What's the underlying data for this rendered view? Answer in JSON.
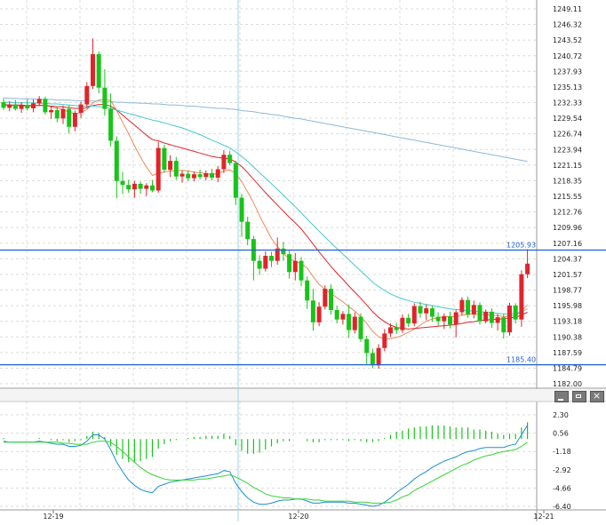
{
  "chart_data": {
    "type": "candlestick",
    "main_axis": {
      "ticks": [
        "1249.11",
        "1246.32",
        "1243.52",
        "1240.72",
        "1237.93",
        "1235.13",
        "1232.33",
        "1229.54",
        "1226.74",
        "1223.94",
        "1221.15",
        "1218.35",
        "1215.55",
        "1212.76",
        "1209.96",
        "1207.16",
        "1204.37",
        "1201.57",
        "1198.77",
        "1195.98",
        "1193.18",
        "1190.38",
        "1187.59",
        "1184.79",
        "1182.00"
      ],
      "ylim": [
        1182.0,
        1249.11
      ]
    },
    "horizontal_levels": [
      {
        "label": "1205.93",
        "value": 1205.93,
        "color": "#1f5fd6"
      },
      {
        "label": "1185.40",
        "value": 1185.4,
        "color": "#1f5fd6"
      }
    ],
    "x_labels": [
      "12-19",
      "12-20",
      "12-21"
    ],
    "ohlc": [
      [
        1232.4,
        1233.1,
        1231.0,
        1231.4
      ],
      [
        1231.4,
        1232.6,
        1230.8,
        1232.0
      ],
      [
        1232.0,
        1232.8,
        1230.9,
        1231.2
      ],
      [
        1231.2,
        1232.4,
        1230.5,
        1231.9
      ],
      [
        1231.9,
        1233.0,
        1230.9,
        1231.3
      ],
      [
        1231.3,
        1232.9,
        1230.6,
        1232.2
      ],
      [
        1232.2,
        1233.5,
        1231.7,
        1233.0
      ],
      [
        1233.0,
        1233.4,
        1230.2,
        1230.6
      ],
      [
        1230.6,
        1231.6,
        1229.4,
        1231.0
      ],
      [
        1231.0,
        1231.6,
        1228.8,
        1229.5
      ],
      [
        1229.5,
        1231.8,
        1228.5,
        1231.2
      ],
      [
        1231.2,
        1231.9,
        1226.8,
        1228.0
      ],
      [
        1228.0,
        1230.9,
        1227.2,
        1230.5
      ],
      [
        1230.5,
        1232.5,
        1229.6,
        1232.0
      ],
      [
        1232.0,
        1236.0,
        1231.5,
        1235.3
      ],
      [
        1235.3,
        1243.8,
        1234.8,
        1241.0
      ],
      [
        1241.0,
        1241.5,
        1234.0,
        1235.0
      ],
      [
        1235.0,
        1238.3,
        1230.0,
        1231.2
      ],
      [
        1231.2,
        1234.0,
        1224.5,
        1225.5
      ],
      [
        1225.5,
        1226.3,
        1215.2,
        1218.3
      ],
      [
        1218.3,
        1219.9,
        1216.0,
        1217.6
      ],
      [
        1217.6,
        1218.5,
        1216.2,
        1216.8
      ],
      [
        1216.8,
        1218.3,
        1215.3,
        1217.8
      ],
      [
        1217.8,
        1218.2,
        1216.0,
        1216.9
      ],
      [
        1216.9,
        1217.9,
        1215.6,
        1217.5
      ],
      [
        1217.5,
        1218.5,
        1216.3,
        1216.6
      ],
      [
        1216.6,
        1225.3,
        1216.2,
        1224.2
      ],
      [
        1224.2,
        1224.8,
        1219.8,
        1220.3
      ],
      [
        1220.3,
        1222.9,
        1219.0,
        1221.9
      ],
      [
        1221.9,
        1222.6,
        1218.5,
        1219.1
      ],
      [
        1219.1,
        1220.2,
        1218.0,
        1219.6
      ],
      [
        1219.6,
        1220.2,
        1218.3,
        1218.8
      ],
      [
        1218.8,
        1220.0,
        1218.2,
        1219.5
      ],
      [
        1219.5,
        1220.3,
        1218.6,
        1219.0
      ],
      [
        1219.0,
        1220.2,
        1218.4,
        1219.7
      ],
      [
        1219.7,
        1220.5,
        1218.4,
        1218.9
      ],
      [
        1218.9,
        1221.0,
        1218.1,
        1220.4
      ],
      [
        1220.4,
        1223.8,
        1219.7,
        1223.0
      ],
      [
        1223.0,
        1223.7,
        1221.1,
        1221.5
      ],
      [
        1221.5,
        1221.9,
        1214.0,
        1215.3
      ],
      [
        1215.3,
        1216.0,
        1208.3,
        1211.0
      ],
      [
        1211.0,
        1211.9,
        1206.8,
        1207.9
      ],
      [
        1207.9,
        1208.5,
        1200.5,
        1204.0
      ],
      [
        1204.0,
        1205.0,
        1201.5,
        1202.6
      ],
      [
        1202.6,
        1205.7,
        1202.1,
        1204.9
      ],
      [
        1204.9,
        1205.6,
        1202.9,
        1204.0
      ],
      [
        1204.0,
        1208.2,
        1203.3,
        1206.2
      ],
      [
        1206.2,
        1207.4,
        1204.0,
        1205.2
      ],
      [
        1205.2,
        1205.9,
        1200.8,
        1202.0
      ],
      [
        1202.0,
        1205.4,
        1200.5,
        1204.0
      ],
      [
        1204.0,
        1204.7,
        1199.5,
        1200.5
      ],
      [
        1200.5,
        1201.2,
        1195.4,
        1196.9
      ],
      [
        1196.9,
        1199.0,
        1191.5,
        1193.0
      ],
      [
        1193.0,
        1196.6,
        1192.3,
        1195.8
      ],
      [
        1195.8,
        1199.6,
        1195.3,
        1199.0
      ],
      [
        1199.0,
        1199.8,
        1194.4,
        1195.2
      ],
      [
        1195.2,
        1195.9,
        1192.8,
        1193.5
      ],
      [
        1193.5,
        1195.0,
        1192.6,
        1194.5
      ],
      [
        1194.5,
        1196.2,
        1190.2,
        1191.6
      ],
      [
        1191.6,
        1194.8,
        1191.0,
        1194.0
      ],
      [
        1194.0,
        1194.6,
        1189.5,
        1190.0
      ],
      [
        1190.0,
        1190.6,
        1185.4,
        1187.5
      ],
      [
        1187.5,
        1188.3,
        1184.8,
        1185.3
      ],
      [
        1185.3,
        1189.1,
        1184.7,
        1188.4
      ],
      [
        1188.4,
        1191.8,
        1187.8,
        1191.0
      ],
      [
        1191.0,
        1192.8,
        1190.4,
        1192.1
      ],
      [
        1192.1,
        1192.9,
        1190.9,
        1191.6
      ],
      [
        1191.6,
        1194.4,
        1191.1,
        1193.8
      ],
      [
        1193.8,
        1194.5,
        1192.2,
        1192.8
      ],
      [
        1192.8,
        1196.4,
        1192.3,
        1195.9
      ],
      [
        1195.9,
        1196.7,
        1193.8,
        1194.6
      ],
      [
        1194.6,
        1196.2,
        1193.4,
        1195.5
      ],
      [
        1195.5,
        1196.0,
        1193.1,
        1194.0
      ],
      [
        1194.0,
        1194.8,
        1192.4,
        1193.2
      ],
      [
        1193.2,
        1194.6,
        1191.8,
        1194.1
      ],
      [
        1194.1,
        1194.9,
        1191.9,
        1192.6
      ],
      [
        1192.6,
        1195.3,
        1190.3,
        1194.8
      ],
      [
        1194.8,
        1197.5,
        1194.2,
        1197.0
      ],
      [
        1197.0,
        1197.6,
        1193.8,
        1194.4
      ],
      [
        1194.4,
        1196.9,
        1193.7,
        1196.1
      ],
      [
        1196.1,
        1196.6,
        1192.6,
        1193.2
      ],
      [
        1193.2,
        1195.3,
        1192.8,
        1194.9
      ],
      [
        1194.9,
        1195.5,
        1192.0,
        1192.9
      ],
      [
        1192.9,
        1194.5,
        1191.5,
        1193.9
      ],
      [
        1193.9,
        1194.5,
        1190.1,
        1191.2
      ],
      [
        1191.2,
        1196.5,
        1190.6,
        1196.0
      ],
      [
        1196.0,
        1196.4,
        1192.8,
        1193.5
      ],
      [
        1193.5,
        1202.3,
        1192.2,
        1201.6
      ],
      [
        1201.6,
        1206.1,
        1200.9,
        1203.5
      ]
    ],
    "moving_averages": [
      {
        "color": "#f08a57",
        "values": [
          1231.8,
          1231.8,
          1231.8,
          1231.7,
          1231.7,
          1231.7,
          1231.9,
          1231.8,
          1231.6,
          1231.3,
          1231.1,
          1230.6,
          1230.4,
          1230.5,
          1231.1,
          1232.3,
          1232.8,
          1233.0,
          1232.7,
          1230.9,
          1228.8,
          1226.8,
          1224.6,
          1222.6,
          1220.8,
          1219.3,
          1219.7,
          1219.9,
          1220.1,
          1220.1,
          1220.2,
          1220.1,
          1219.9,
          1219.8,
          1219.6,
          1219.5,
          1219.6,
          1220.1,
          1220.3,
          1219.6,
          1218.2,
          1216.3,
          1214.4,
          1212.1,
          1210.0,
          1208.0,
          1206.6,
          1205.3,
          1204.4,
          1203.9,
          1203.5,
          1202.7,
          1201.2,
          1199.8,
          1198.9,
          1198.2,
          1197.4,
          1196.7,
          1195.8,
          1195.0,
          1194.0,
          1192.8,
          1191.4,
          1190.4,
          1190.0,
          1190.1,
          1190.3,
          1190.7,
          1191.2,
          1191.8,
          1192.5,
          1193.2,
          1193.6,
          1193.8,
          1194.0,
          1194.0,
          1194.0,
          1194.3,
          1194.4,
          1194.5,
          1194.4,
          1194.4,
          1194.3,
          1194.2,
          1194.0,
          1194.1,
          1194.2,
          1195.0,
          1196.1
        ]
      },
      {
        "color": "#e0242a",
        "values": [
          1232.0,
          1231.9,
          1231.9,
          1231.9,
          1231.8,
          1231.8,
          1231.8,
          1231.8,
          1231.7,
          1231.6,
          1231.6,
          1231.4,
          1231.3,
          1231.3,
          1231.4,
          1231.8,
          1232.0,
          1232.0,
          1231.7,
          1231.0,
          1230.1,
          1229.2,
          1228.3,
          1227.4,
          1226.5,
          1225.7,
          1225.5,
          1225.1,
          1224.8,
          1224.5,
          1224.2,
          1223.9,
          1223.6,
          1223.3,
          1223.0,
          1222.7,
          1222.5,
          1222.4,
          1222.3,
          1221.7,
          1220.9,
          1219.8,
          1218.6,
          1217.4,
          1216.2,
          1215.1,
          1214.0,
          1212.9,
          1211.8,
          1210.8,
          1209.7,
          1208.4,
          1207.0,
          1205.6,
          1204.3,
          1203.0,
          1201.8,
          1200.7,
          1199.5,
          1198.4,
          1197.3,
          1196.1,
          1194.9,
          1193.9,
          1193.1,
          1192.5,
          1192.1,
          1191.9,
          1191.8,
          1191.9,
          1192.0,
          1192.1,
          1192.2,
          1192.3,
          1192.4,
          1192.5,
          1192.6,
          1192.8,
          1193.0,
          1193.1,
          1193.3,
          1193.4,
          1193.5,
          1193.6,
          1193.6,
          1193.8,
          1193.9,
          1194.3,
          1194.8
        ]
      },
      {
        "color": "#45c8d2",
        "values": [
          1232.4,
          1232.4,
          1232.3,
          1232.3,
          1232.3,
          1232.3,
          1232.2,
          1232.2,
          1232.1,
          1232.1,
          1232.0,
          1231.9,
          1231.8,
          1231.7,
          1231.7,
          1231.7,
          1231.6,
          1231.5,
          1231.3,
          1231.0,
          1230.7,
          1230.4,
          1230.1,
          1229.8,
          1229.5,
          1229.2,
          1229.0,
          1228.7,
          1228.4,
          1228.1,
          1227.8,
          1227.4,
          1227.0,
          1226.6,
          1226.1,
          1225.6,
          1225.2,
          1224.7,
          1224.2,
          1223.5,
          1222.7,
          1221.8,
          1220.8,
          1219.8,
          1218.8,
          1217.8,
          1216.8,
          1215.8,
          1214.7,
          1213.7,
          1212.6,
          1211.5,
          1210.4,
          1209.3,
          1208.3,
          1207.2,
          1206.2,
          1205.2,
          1204.2,
          1203.2,
          1202.2,
          1201.2,
          1200.2,
          1199.4,
          1198.7,
          1198.1,
          1197.6,
          1197.2,
          1196.9,
          1196.6,
          1196.4,
          1196.2,
          1196.0,
          1195.8,
          1195.6,
          1195.4,
          1195.3,
          1195.2,
          1195.1,
          1195.0,
          1194.9,
          1194.8,
          1194.7,
          1194.6,
          1194.5,
          1194.5,
          1194.5,
          1194.9,
          1195.4
        ]
      },
      {
        "color": "#8fb8d8",
        "values": [
          1233.2,
          1233.1,
          1233.1,
          1233.0,
          1233.0,
          1233.0,
          1232.9,
          1232.9,
          1232.9,
          1232.8,
          1232.8,
          1232.8,
          1232.7,
          1232.7,
          1232.6,
          1232.6,
          1232.6,
          1232.5,
          1232.5,
          1232.4,
          1232.4,
          1232.3,
          1232.3,
          1232.2,
          1232.2,
          1232.1,
          1232.1,
          1232.0,
          1231.9,
          1231.9,
          1231.8,
          1231.7,
          1231.7,
          1231.6,
          1231.5,
          1231.4,
          1231.3,
          1231.3,
          1231.2,
          1231.1,
          1230.9,
          1230.8,
          1230.7,
          1230.5,
          1230.4,
          1230.2,
          1230.1,
          1229.9,
          1229.7,
          1229.5,
          1229.4,
          1229.2,
          1229.0,
          1228.8,
          1228.6,
          1228.4,
          1228.2,
          1228.0,
          1227.8,
          1227.6,
          1227.4,
          1227.2,
          1227.0,
          1226.8,
          1226.6,
          1226.4,
          1226.2,
          1226.0,
          1225.8,
          1225.6,
          1225.4,
          1225.2,
          1225.0,
          1224.8,
          1224.6,
          1224.4,
          1224.2,
          1224.0,
          1223.8,
          1223.6,
          1223.4,
          1223.2,
          1223.0,
          1222.8,
          1222.6,
          1222.4,
          1222.2,
          1222.0,
          1221.8
        ]
      }
    ],
    "macd_axis": {
      "ticks": [
        "2.30",
        "0.56",
        "-1.18",
        "-2.92",
        "-4.66",
        "-6.40"
      ],
      "ylim": [
        -6.4,
        2.3
      ]
    },
    "macd": {
      "dif": [
        -0.2,
        -0.3,
        -0.3,
        -0.3,
        -0.3,
        -0.3,
        -0.2,
        -0.3,
        -0.4,
        -0.5,
        -0.5,
        -0.7,
        -0.7,
        -0.6,
        -0.2,
        0.4,
        0.4,
        0.0,
        -1.0,
        -2.2,
        -3.1,
        -3.9,
        -4.4,
        -4.8,
        -5.0,
        -5.1,
        -4.5,
        -4.3,
        -4.1,
        -4.0,
        -3.9,
        -3.8,
        -3.7,
        -3.6,
        -3.5,
        -3.4,
        -3.3,
        -3.0,
        -3.1,
        -4.2,
        -5.0,
        -5.6,
        -6.0,
        -6.2,
        -6.2,
        -6.1,
        -5.9,
        -5.8,
        -5.8,
        -5.7,
        -5.7,
        -5.9,
        -6.1,
        -6.1,
        -6.0,
        -6.0,
        -6.0,
        -6.0,
        -6.1,
        -6.1,
        -6.2,
        -6.3,
        -6.4,
        -6.3,
        -6.0,
        -5.6,
        -5.1,
        -4.7,
        -4.3,
        -3.8,
        -3.4,
        -3.1,
        -2.7,
        -2.4,
        -2.1,
        -1.9,
        -1.7,
        -1.4,
        -1.2,
        -1.1,
        -0.9,
        -0.8,
        -0.8,
        -0.8,
        -0.8,
        -0.6,
        -0.5,
        0.4,
        1.3
      ],
      "dea": [
        -0.3,
        -0.3,
        -0.3,
        -0.3,
        -0.3,
        -0.3,
        -0.3,
        -0.3,
        -0.3,
        -0.3,
        -0.4,
        -0.4,
        -0.5,
        -0.5,
        -0.5,
        -0.3,
        -0.2,
        -0.2,
        -0.3,
        -0.7,
        -1.2,
        -1.7,
        -2.2,
        -2.7,
        -3.1,
        -3.4,
        -3.6,
        -3.8,
        -3.9,
        -3.9,
        -3.9,
        -3.9,
        -3.9,
        -3.8,
        -3.8,
        -3.7,
        -3.6,
        -3.5,
        -3.4,
        -3.6,
        -3.9,
        -4.2,
        -4.6,
        -4.9,
        -5.2,
        -5.4,
        -5.5,
        -5.6,
        -5.6,
        -5.7,
        -5.7,
        -5.7,
        -5.8,
        -5.8,
        -5.9,
        -5.9,
        -5.9,
        -5.9,
        -5.9,
        -6.0,
        -6.0,
        -6.0,
        -6.1,
        -6.1,
        -6.1,
        -6.0,
        -5.8,
        -5.5,
        -5.3,
        -4.9,
        -4.6,
        -4.3,
        -4.0,
        -3.7,
        -3.4,
        -3.1,
        -2.8,
        -2.5,
        -2.3,
        -2.0,
        -1.8,
        -1.6,
        -1.5,
        -1.3,
        -1.2,
        -1.1,
        -1.0,
        -0.7,
        -0.3
      ],
      "hist": [
        0.1,
        0.0,
        0.0,
        0.0,
        0.0,
        0.0,
        0.1,
        0.0,
        -0.1,
        -0.2,
        -0.1,
        -0.3,
        -0.2,
        -0.1,
        0.3,
        0.7,
        0.6,
        0.2,
        -0.7,
        -1.5,
        -1.9,
        -2.2,
        -2.2,
        -2.1,
        -1.9,
        -1.7,
        -0.9,
        -0.5,
        -0.2,
        -0.1,
        0.0,
        0.1,
        0.2,
        0.2,
        0.3,
        0.3,
        0.3,
        0.5,
        0.3,
        -0.6,
        -1.1,
        -1.4,
        -1.4,
        -1.3,
        -1.0,
        -0.7,
        -0.4,
        -0.2,
        -0.2,
        0.0,
        0.0,
        -0.2,
        -0.3,
        -0.3,
        -0.1,
        -0.1,
        -0.1,
        -0.1,
        -0.2,
        -0.1,
        -0.2,
        -0.3,
        -0.3,
        -0.2,
        0.1,
        0.4,
        0.7,
        0.8,
        1.0,
        1.1,
        1.2,
        1.2,
        1.3,
        1.3,
        1.3,
        1.2,
        1.1,
        1.1,
        1.1,
        0.9,
        0.9,
        0.8,
        0.7,
        0.5,
        0.4,
        0.5,
        0.5,
        1.1,
        1.6
      ]
    },
    "colors": {
      "up": "#e0242a",
      "down": "#18c418",
      "dif": "#1a8fd0",
      "dea": "#35d435",
      "level": "#1f5fd6",
      "cursor": "#9ad6e6",
      "grid": "#dcdcdc"
    }
  },
  "controls": {
    "minimize_icon": "minimize-icon",
    "maximize_icon": "maximize-icon",
    "close_icon": "close-icon"
  }
}
